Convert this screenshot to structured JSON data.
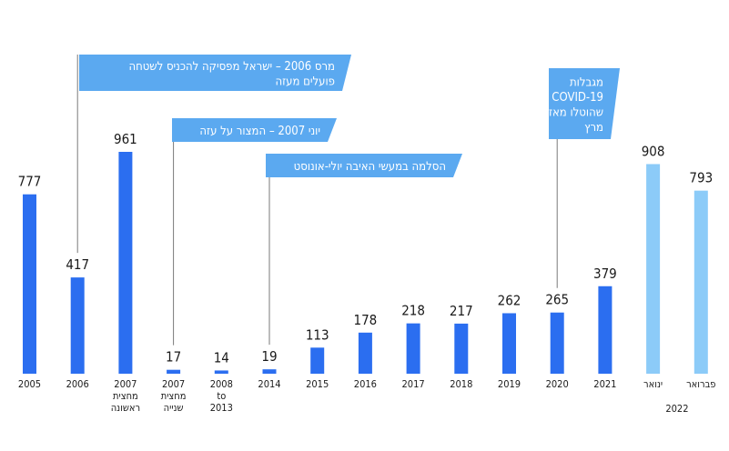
{
  "chart_data": {
    "type": "bar",
    "colors": {
      "primary": "#2b6ef0",
      "light": "#8ccbf8",
      "callout": "#5ba9f0"
    },
    "bars": [
      {
        "value": 777,
        "label_lines": [
          "2005"
        ],
        "tone": "primary"
      },
      {
        "value": 417,
        "label_lines": [
          "2006"
        ],
        "tone": "primary"
      },
      {
        "value": 961,
        "label_lines": [
          "2007",
          "מחצית",
          "ראשונה"
        ],
        "tone": "primary"
      },
      {
        "value": 17,
        "label_lines": [
          "2007",
          "מחצית",
          "שנייה"
        ],
        "tone": "primary"
      },
      {
        "value": 14,
        "label_lines": [
          "2008",
          "to",
          "2013"
        ],
        "tone": "primary"
      },
      {
        "value": 19,
        "label_lines": [
          "2014"
        ],
        "tone": "primary"
      },
      {
        "value": 113,
        "label_lines": [
          "2015"
        ],
        "tone": "primary"
      },
      {
        "value": 178,
        "label_lines": [
          "2016"
        ],
        "tone": "primary"
      },
      {
        "value": 218,
        "label_lines": [
          "2017"
        ],
        "tone": "primary"
      },
      {
        "value": 217,
        "label_lines": [
          "2018"
        ],
        "tone": "primary"
      },
      {
        "value": 262,
        "label_lines": [
          "2019"
        ],
        "tone": "primary"
      },
      {
        "value": 265,
        "label_lines": [
          "2020"
        ],
        "tone": "primary"
      },
      {
        "value": 379,
        "label_lines": [
          "2021"
        ],
        "tone": "primary"
      },
      {
        "value": 908,
        "label_lines": [
          "ינואר"
        ],
        "tone": "light"
      },
      {
        "value": 793,
        "label_lines": [
          "פברואר"
        ],
        "tone": "light"
      }
    ],
    "group_label": "2022",
    "annotations": [
      {
        "lines": [
          "מרס 2006 – ישראל מפסיקה להכניס לשטחה",
          "פועלים מעזה"
        ],
        "bar_index": 1
      },
      {
        "lines": [
          "יוני 2007 – המצור על עזה"
        ],
        "bar_index": 3
      },
      {
        "lines": [
          "הסלמה במעשי האיבה יולי-אונוסט"
        ],
        "bar_index": 5
      },
      {
        "lines": [
          "מגבלות",
          "COVID-19",
          "שהוטלו מאז",
          "מרץ"
        ],
        "bar_index": 11
      }
    ]
  }
}
